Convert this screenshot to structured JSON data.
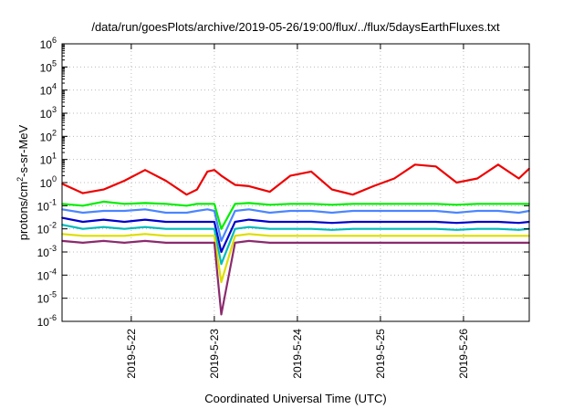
{
  "chart_data": {
    "type": "line",
    "title": "/data/run/goesPlots/archive/2019-05-26/19:00/flux/../flux/5daysEarthFluxes.txt",
    "xlabel": "Coordinated Universal Time (UTC)",
    "ylabel": "protons/cm2-s-sr-MeV",
    "ylabel_parts": {
      "base": "protons/cm",
      "sup": "2",
      "rest": "-s-sr-MeV"
    },
    "yscale": "log",
    "ylim": [
      1e-06,
      1000000.0
    ],
    "xlim": [
      "2019-05-21T04:00",
      "2019-05-26T19:00"
    ],
    "grid": true,
    "x_ticks": [
      "2019-5-22",
      "2019-5-23",
      "2019-5-24",
      "2019-5-25",
      "2019-5-26"
    ],
    "y_ticks": [
      {
        "base": "10",
        "exp": "-6",
        "value": 1e-06
      },
      {
        "base": "10",
        "exp": "-5",
        "value": 1e-05
      },
      {
        "base": "10",
        "exp": "-4",
        "value": 0.0001
      },
      {
        "base": "10",
        "exp": "-3",
        "value": 0.001
      },
      {
        "base": "10",
        "exp": "-2",
        "value": 0.01
      },
      {
        "base": "10",
        "exp": "-1",
        "value": 0.1
      },
      {
        "base": "10",
        "exp": "0",
        "value": 1
      },
      {
        "base": "10",
        "exp": "1",
        "value": 10
      },
      {
        "base": "10",
        "exp": "2",
        "value": 100
      },
      {
        "base": "10",
        "exp": "3",
        "value": 1000
      },
      {
        "base": "10",
        "exp": "4",
        "value": 10000
      },
      {
        "base": "10",
        "exp": "5",
        "value": 100000
      },
      {
        "base": "10",
        "exp": "6",
        "value": 1000000
      }
    ],
    "x": [
      "2019-05-21T04:00",
      "2019-05-21T10:00",
      "2019-05-21T16:00",
      "2019-05-21T22:00",
      "2019-05-22T04:00",
      "2019-05-22T10:00",
      "2019-05-22T16:00",
      "2019-05-22T19:00",
      "2019-05-22T22:00",
      "2019-05-23T00:00",
      "2019-05-23T02:00",
      "2019-05-23T06:00",
      "2019-05-23T10:00",
      "2019-05-23T16:00",
      "2019-05-23T22:00",
      "2019-05-24T04:00",
      "2019-05-24T10:00",
      "2019-05-24T16:00",
      "2019-05-24T22:00",
      "2019-05-25T04:00",
      "2019-05-25T10:00",
      "2019-05-25T16:00",
      "2019-05-25T22:00",
      "2019-05-26T04:00",
      "2019-05-26T10:00",
      "2019-05-26T16:00",
      "2019-05-26T19:00"
    ],
    "series": [
      {
        "color": "#ee0000",
        "values": [
          0.9,
          0.35,
          0.5,
          1.2,
          3.5,
          1.2,
          0.3,
          0.5,
          3.0,
          3.5,
          2.0,
          0.8,
          0.7,
          0.4,
          2.0,
          3.0,
          0.5,
          0.3,
          0.7,
          1.5,
          6.0,
          5.0,
          1.0,
          1.5,
          6.0,
          1.5,
          4.0
        ]
      },
      {
        "color": "#00ee00",
        "values": [
          0.12,
          0.1,
          0.15,
          0.12,
          0.13,
          0.12,
          0.1,
          0.12,
          0.12,
          0.12,
          0.01,
          0.12,
          0.13,
          0.11,
          0.12,
          0.12,
          0.11,
          0.12,
          0.12,
          0.12,
          0.12,
          0.12,
          0.11,
          0.12,
          0.12,
          0.12,
          0.12
        ]
      },
      {
        "color": "#4a86ff",
        "values": [
          0.07,
          0.05,
          0.06,
          0.06,
          0.07,
          0.05,
          0.05,
          0.06,
          0.07,
          0.06,
          0.003,
          0.06,
          0.07,
          0.05,
          0.06,
          0.06,
          0.05,
          0.06,
          0.06,
          0.06,
          0.06,
          0.06,
          0.05,
          0.06,
          0.06,
          0.05,
          0.06
        ]
      },
      {
        "color": "#0000cc",
        "values": [
          0.03,
          0.02,
          0.025,
          0.02,
          0.025,
          0.02,
          0.02,
          0.02,
          0.02,
          0.02,
          0.001,
          0.02,
          0.025,
          0.02,
          0.02,
          0.02,
          0.018,
          0.02,
          0.02,
          0.02,
          0.02,
          0.02,
          0.018,
          0.02,
          0.02,
          0.018,
          0.02
        ]
      },
      {
        "color": "#00bbbb",
        "values": [
          0.015,
          0.01,
          0.012,
          0.01,
          0.012,
          0.01,
          0.01,
          0.01,
          0.01,
          0.01,
          0.0003,
          0.01,
          0.012,
          0.01,
          0.01,
          0.01,
          0.009,
          0.01,
          0.01,
          0.01,
          0.01,
          0.01,
          0.009,
          0.01,
          0.01,
          0.009,
          0.01
        ]
      },
      {
        "color": "#dddd00",
        "values": [
          0.006,
          0.005,
          0.005,
          0.005,
          0.006,
          0.005,
          0.005,
          0.005,
          0.005,
          0.005,
          5e-05,
          0.005,
          0.006,
          0.005,
          0.005,
          0.005,
          0.005,
          0.005,
          0.005,
          0.005,
          0.005,
          0.005,
          0.005,
          0.005,
          0.005,
          0.005,
          0.005
        ]
      },
      {
        "color": "#8b2a6e",
        "values": [
          0.003,
          0.0025,
          0.003,
          0.0025,
          0.003,
          0.0025,
          0.0025,
          0.0025,
          0.0025,
          0.0025,
          2e-06,
          0.0025,
          0.003,
          0.0025,
          0.0025,
          0.0025,
          0.0025,
          0.0025,
          0.0025,
          0.0025,
          0.0025,
          0.0025,
          0.0025,
          0.0025,
          0.0025,
          0.0025,
          0.0025
        ]
      }
    ]
  }
}
